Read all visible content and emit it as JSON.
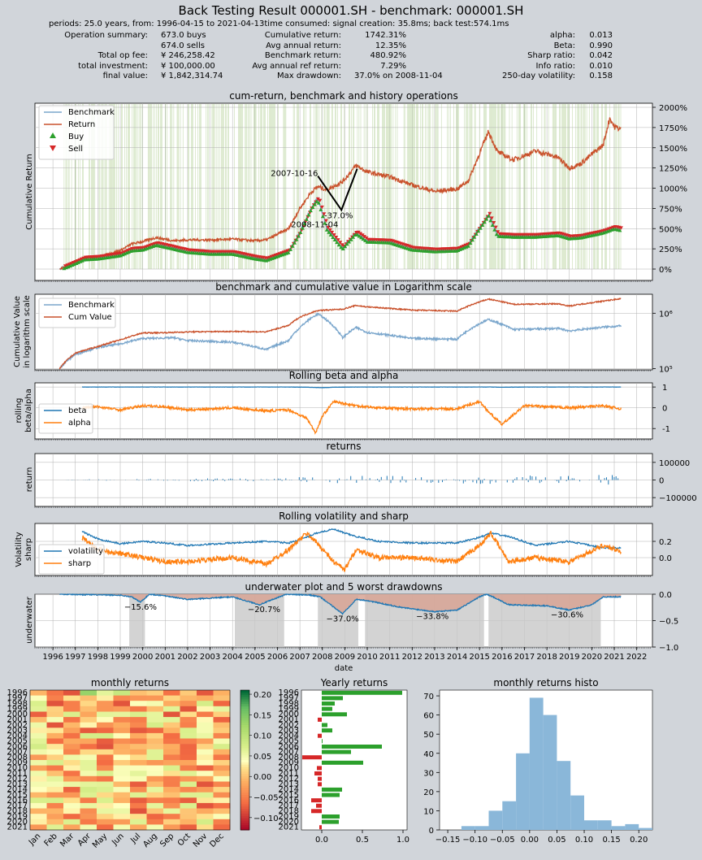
{
  "header": {
    "title": "Back Testing Result 000001.SH - benchmark: 000001.SH",
    "subtitle": "periods: 25.0 years, from: 1996-04-15 to 2021-04-13time consumed:   signal creation: 35.8ms;  back test:574.1ms"
  },
  "summary": {
    "left": [
      {
        "label": "Operation summary:",
        "value": "673.0     buys"
      },
      {
        "label": "",
        "value": "674.0     sells"
      },
      {
        "label": "Total op fee:",
        "value": "¥   246,258.42"
      },
      {
        "label": "total investment:",
        "value": "¥   100,000.00"
      },
      {
        "label": "final value:",
        "value": "¥ 1,842,314.74"
      }
    ],
    "middle": [
      {
        "label": "Cumulative return:",
        "value": "1742.31%"
      },
      {
        "label": "Avg annual return:",
        "value": "12.35%"
      },
      {
        "label": "Benchmark return:",
        "value": "480.92%"
      },
      {
        "label": "Avg annual ref return:",
        "value": "7.29%"
      },
      {
        "label": "Max drawdown:",
        "value": "37.0% on 2008-11-04"
      }
    ],
    "right": [
      {
        "label": "alpha:",
        "value": "0.013"
      },
      {
        "label": "Beta:",
        "value": "0.990"
      },
      {
        "label": "Sharp ratio:",
        "value": "0.042"
      },
      {
        "label": "Info ratio:",
        "value": "0.010"
      },
      {
        "label": "250-day volatility:",
        "value": "0.158"
      }
    ]
  },
  "colors": {
    "benchmark": "#7aa6cc",
    "return": "#c9512b",
    "buy": "#2ca02c",
    "sell": "#d62728",
    "blue": "#1f77b4",
    "orange": "#ff7f0e",
    "ops": "#9fc47c",
    "drawdown": "#d7a394",
    "worst": "#c8c8c8",
    "histo": "#8ab7d9"
  },
  "icons": {
    "buy": "triangle-up",
    "sell": "triangle-down"
  },
  "chart_data": [
    {
      "id": "cum",
      "type": "line",
      "title": "cum-return, benchmark and history operations",
      "ylabel": "Cumulative Return",
      "ylim": [
        -0.25,
        20
      ],
      "yticks": [
        "0%",
        "250%",
        "500%",
        "750%",
        "1000%",
        "1250%",
        "1500%",
        "1750%",
        "2000%"
      ],
      "legend": [
        "Benchmark",
        "Return",
        "Buy",
        "Sell"
      ],
      "legend_position": "top-left",
      "x": [
        1996.3,
        1997.0,
        1997.4,
        1998.0,
        1999.0,
        1999.5,
        2000.0,
        2000.6,
        2001.4,
        2002.0,
        2003.0,
        2004.0,
        2005.0,
        2005.5,
        2006.5,
        2007.0,
        2007.5,
        2007.8,
        2008.2,
        2008.9,
        2009.5,
        2010.0,
        2011.0,
        2012.0,
        2013.0,
        2014.0,
        2014.5,
        2015.4,
        2015.8,
        2016.5,
        2017.5,
        2018.5,
        2019.0,
        2019.5,
        2020.0,
        2020.5,
        2020.8,
        2021.0,
        2021.3
      ],
      "series": [
        {
          "name": "Benchmark",
          "values": [
            0.0,
            0.8,
            1.3,
            1.4,
            1.8,
            2.4,
            2.5,
            3.1,
            2.6,
            2.2,
            2.0,
            2.0,
            1.4,
            1.2,
            2.2,
            4.5,
            7.5,
            8.7,
            5.0,
            2.6,
            4.5,
            3.5,
            3.4,
            2.5,
            2.3,
            2.4,
            3.0,
            6.7,
            4.2,
            4.1,
            4.1,
            4.3,
            3.9,
            4.0,
            4.3,
            4.6,
            4.9,
            5.1,
            4.9
          ]
        },
        {
          "name": "Return",
          "values": [
            0.0,
            0.9,
            1.4,
            1.5,
            2.3,
            3.1,
            3.4,
            3.9,
            3.5,
            3.6,
            3.6,
            3.7,
            3.5,
            3.6,
            5.0,
            7.5,
            9.5,
            10.2,
            9.8,
            10.8,
            12.8,
            12.0,
            11.4,
            10.4,
            9.6,
            9.9,
            10.9,
            17.0,
            14.5,
            13.5,
            14.6,
            13.8,
            12.5,
            13.0,
            14.2,
            15.3,
            18.7,
            17.6,
            17.3
          ]
        }
      ],
      "annotations": [
        {
          "text": "2007-10-16",
          "x": 2007.8,
          "y": 11.9
        },
        {
          "text": "-37.0%",
          "x": 2008.3,
          "y": 6.7
        },
        {
          "text": "2008-11-04",
          "x": 2008.85,
          "y": 5.6
        }
      ]
    },
    {
      "id": "log",
      "type": "line",
      "title": "benchmark and cumulative value in Logarithm scale",
      "ylabel": "Cumulative Value\nin logarithm scale",
      "yscale": "log",
      "ylim": [
        95000,
        2200000
      ],
      "yticks": [
        "10⁵",
        "10⁶"
      ],
      "legend": [
        "Benchmark",
        "Cum Value"
      ],
      "legend_position": "top-left",
      "x": [
        1996.3,
        1997.0,
        1998.0,
        1999.0,
        2000.0,
        2001.4,
        2002.0,
        2004.0,
        2005.5,
        2006.5,
        2007.0,
        2007.8,
        2008.9,
        2009.5,
        2010.0,
        2012.0,
        2014.0,
        2015.4,
        2016.5,
        2018.5,
        2019.0,
        2020.5,
        2021.3
      ],
      "series": [
        {
          "name": "Benchmark",
          "values": [
            100000,
            180000,
            240000,
            280000,
            350000,
            360000,
            320000,
            300000,
            220000,
            320000,
            550000,
            970000,
            360000,
            550000,
            450000,
            350000,
            340000,
            770000,
            510000,
            530000,
            480000,
            560000,
            590000
          ]
        },
        {
          "name": "Cum Value",
          "values": [
            100000,
            190000,
            250000,
            330000,
            440000,
            450000,
            460000,
            470000,
            460000,
            600000,
            850000,
            1120000,
            1180000,
            1380000,
            1300000,
            1140000,
            1090000,
            1800000,
            1450000,
            1480000,
            1350000,
            1650000,
            1840000
          ]
        }
      ]
    },
    {
      "id": "beta",
      "type": "line",
      "title": "Rolling beta and alpha",
      "ylabel": "rolling\nbeta/alpha",
      "ylim": [
        -1.5,
        1.2
      ],
      "yticks": [
        "-1",
        "0",
        "1"
      ],
      "legend": [
        "beta",
        "alpha"
      ],
      "legend_position": "bottom-left",
      "x": [
        1997.3,
        1998.0,
        1999.0,
        2000.0,
        2001.0,
        2002.0,
        2004.0,
        2005.5,
        2006.5,
        2007.3,
        2007.7,
        2008.0,
        2008.5,
        2009.5,
        2010.5,
        2012.0,
        2014.0,
        2015.0,
        2015.5,
        2016.0,
        2017.0,
        2019.0,
        2020.5,
        2021.3
      ],
      "series": [
        {
          "name": "beta",
          "values": [
            1.0,
            1.0,
            1.0,
            1.0,
            1.0,
            1.0,
            1.0,
            1.0,
            1.0,
            0.99,
            0.98,
            0.97,
            0.99,
            1.0,
            1.0,
            1.0,
            1.0,
            1.0,
            1.0,
            0.99,
            1.0,
            1.0,
            1.0,
            1.0
          ]
        },
        {
          "name": "alpha",
          "values": [
            0.0,
            0.05,
            -0.1,
            0.1,
            0.05,
            -0.1,
            0.0,
            -0.15,
            -0.1,
            -0.5,
            -1.2,
            -0.4,
            0.3,
            0.1,
            0.0,
            -0.05,
            -0.05,
            0.3,
            -0.3,
            -0.8,
            0.1,
            0.0,
            0.1,
            -0.05
          ]
        }
      ]
    },
    {
      "id": "returns",
      "type": "bar",
      "title": "returns",
      "ylabel": "return",
      "ylim": [
        -150000,
        150000
      ],
      "yticks": [
        "100000",
        "0",
        "−100000"
      ]
    },
    {
      "id": "vol",
      "type": "line",
      "title": "Rolling volatility and sharp",
      "ylabel": "Volatility\nsharp",
      "ylim": [
        -0.22,
        0.42
      ],
      "yticks": [
        "0.0",
        "0.2"
      ],
      "legend": [
        "volatility",
        "sharp"
      ],
      "legend_position": "bottom-left",
      "x": [
        1997.3,
        1998.0,
        1999.0,
        2000.0,
        2001.0,
        2002.0,
        2004.0,
        2005.5,
        2006.5,
        2007.3,
        2007.7,
        2008.5,
        2009.0,
        2009.5,
        2010.5,
        2012.0,
        2014.0,
        2015.0,
        2015.5,
        2016.3,
        2017.5,
        2019.0,
        2020.5,
        2021.3
      ],
      "series": [
        {
          "name": "volatility",
          "values": [
            0.32,
            0.23,
            0.17,
            0.2,
            0.18,
            0.15,
            0.18,
            0.2,
            0.18,
            0.25,
            0.3,
            0.35,
            0.3,
            0.26,
            0.2,
            0.18,
            0.18,
            0.25,
            0.3,
            0.26,
            0.15,
            0.2,
            0.12,
            0.12
          ]
        },
        {
          "name": "sharp",
          "values": [
            0.25,
            0.1,
            0.05,
            0.0,
            -0.05,
            -0.05,
            0.0,
            -0.08,
            0.1,
            0.3,
            0.2,
            -0.05,
            -0.15,
            0.1,
            0.0,
            0.0,
            -0.05,
            0.15,
            0.3,
            -0.05,
            0.0,
            -0.05,
            0.15,
            0.08
          ]
        }
      ]
    },
    {
      "id": "underwater",
      "type": "area",
      "title": "underwater plot and 5 worst drawdowns",
      "ylabel": "underwater",
      "xlabel": "date",
      "ylim": [
        -1.0,
        0.0
      ],
      "yticks": [
        "0.0",
        "−0.5",
        "−1.0"
      ],
      "xticks": [
        "1996",
        "1997",
        "1998",
        "1999",
        "2000",
        "2001",
        "2002",
        "2003",
        "2004",
        "2005",
        "2006",
        "2007",
        "2008",
        "2009",
        "2010",
        "2011",
        "2012",
        "2013",
        "2014",
        "2015",
        "2016",
        "2017",
        "2018",
        "2019",
        "2020",
        "2021",
        "2022"
      ],
      "x": [
        1996.3,
        1999.0,
        1999.5,
        1999.9,
        2000.3,
        2001.0,
        2002.0,
        2004.0,
        2005.2,
        2006.4,
        2007.5,
        2007.9,
        2008.9,
        2009.5,
        2010.0,
        2011.5,
        2013.0,
        2014.0,
        2015.0,
        2015.3,
        2015.6,
        2016.3,
        2018.0,
        2019.0,
        2020.0,
        2020.5,
        2021.3
      ],
      "values": [
        0.0,
        -0.02,
        -0.05,
        -0.15,
        0.0,
        -0.03,
        -0.1,
        -0.05,
        -0.2,
        0.0,
        -0.02,
        -0.05,
        -0.37,
        -0.1,
        -0.12,
        -0.25,
        -0.33,
        -0.3,
        -0.05,
        0.0,
        -0.05,
        -0.2,
        -0.22,
        -0.3,
        -0.2,
        -0.05,
        -0.05
      ],
      "worst_drawdowns": [
        {
          "label": "−15.6%",
          "start": 1999.4,
          "end": 2000.1,
          "x": 1999.9,
          "y": -0.23
        },
        {
          "label": "−20.7%",
          "start": 2004.1,
          "end": 2006.3,
          "x": 2005.4,
          "y": -0.28
        },
        {
          "label": "−37.0%",
          "start": 2007.8,
          "end": 2009.6,
          "x": 2008.9,
          "y": -0.45
        },
        {
          "label": "−33.8%",
          "start": 2009.9,
          "end": 2015.2,
          "x": 2012.9,
          "y": -0.41
        },
        {
          "label": "−30.6%",
          "start": 2015.4,
          "end": 2020.4,
          "x": 2018.9,
          "y": -0.38
        }
      ]
    },
    {
      "id": "heatmap",
      "type": "heatmap",
      "title": "monthly returns",
      "years": [
        "1996",
        "1997",
        "1998",
        "1999",
        "2000",
        "2001",
        "2002",
        "2003",
        "2004",
        "2005",
        "2006",
        "2007",
        "2008",
        "2009",
        "2010",
        "2011",
        "2012",
        "2013",
        "2014",
        "2015",
        "2016",
        "2017",
        "2018",
        "2019",
        "2020",
        "2021"
      ],
      "months": [
        "Jan",
        "Feb",
        "Mar",
        "Apr",
        "May",
        "Jun",
        "Jul",
        "Aug",
        "Sep",
        "Oct",
        "Nov",
        "Dec"
      ],
      "colorbar_ticks": [
        "0.20",
        "0.15",
        "0.10",
        "0.05",
        "0.00",
        "−0.05",
        "−0.10"
      ],
      "clim": [
        -0.13,
        0.21
      ]
    },
    {
      "id": "yearly",
      "type": "bar",
      "orientation": "horizontal",
      "title": "Yearly returns",
      "categories": [
        "1996",
        "1997",
        "1998",
        "1999",
        "2000",
        "2001",
        "2002",
        "2003",
        "2004",
        "2005",
        "2006",
        "2007",
        "2008",
        "2009",
        "2010",
        "2011",
        "2012",
        "2013",
        "2014",
        "2015",
        "2016",
        "2017",
        "2018",
        "2019",
        "2020",
        "2021"
      ],
      "values": [
        0.99,
        0.26,
        0.16,
        0.13,
        0.31,
        -0.05,
        0.07,
        0.13,
        -0.05,
        0.01,
        0.74,
        0.36,
        -0.24,
        0.51,
        -0.06,
        -0.09,
        -0.05,
        -0.05,
        0.25,
        0.22,
        -0.13,
        -0.07,
        -0.13,
        0.22,
        0.21,
        -0.03
      ],
      "xlim": [
        -0.25,
        1.05
      ],
      "xticks": [
        "0.0",
        "0.5",
        "1.0"
      ]
    },
    {
      "id": "histo",
      "type": "bar",
      "title": "monthly returns histo",
      "bins": [
        -0.15,
        -0.125,
        -0.1,
        -0.075,
        -0.05,
        -0.025,
        0.0,
        0.025,
        0.05,
        0.075,
        0.1,
        0.125,
        0.15,
        0.175,
        0.2
      ],
      "values": [
        0,
        2,
        2,
        10,
        15,
        40,
        69,
        60,
        36,
        18,
        5,
        5,
        2,
        3,
        1
      ],
      "ylim": [
        0,
        73
      ],
      "xlim": [
        -0.165,
        0.225
      ],
      "xticks": [
        "−0.15",
        "−0.10",
        "−0.05",
        "0.00",
        "0.05",
        "0.10",
        "0.15",
        "0.20"
      ],
      "yticks": [
        "0",
        "10",
        "20",
        "30",
        "40",
        "50",
        "60",
        "70"
      ]
    }
  ]
}
